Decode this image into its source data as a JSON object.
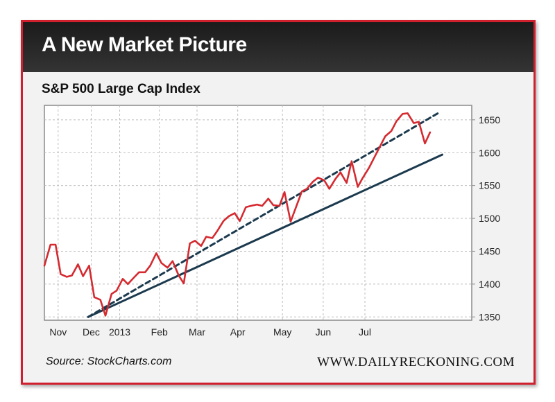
{
  "header": {
    "title": "A New Market Picture"
  },
  "footer": {
    "source": "Source: StockCharts.com",
    "site": "WWW.DAILYRECKONING.COM"
  },
  "colors": {
    "frame": "#d0202e",
    "header_bg": "#262626",
    "price_line": "#d42a30",
    "trend_line": "#1c3a4e"
  },
  "chart_data": {
    "type": "line",
    "title": "S&P 500 Large Cap Index",
    "xlabel": "",
    "ylabel": "",
    "x_tick_labels": [
      "Nov",
      "Dec",
      "2013",
      "Feb",
      "Mar",
      "Apr",
      "May",
      "Jun",
      "Jul"
    ],
    "y_ticks": [
      1350,
      1400,
      1450,
      1500,
      1550,
      1600,
      1650
    ],
    "ylim": [
      1345,
      1672
    ],
    "grid": true,
    "y_axis_side": "right",
    "x_domain_weeks": [
      0,
      42
    ],
    "x_tick_positions_weeks": [
      1.35,
      4.6,
      7.4,
      11.3,
      15.0,
      19.0,
      23.4,
      27.4,
      31.5
    ],
    "series": [
      {
        "style": "solid-red",
        "x": [
          0,
          0.6,
          1.1,
          1.6,
          2.2,
          2.7,
          3.3,
          3.8,
          4.4,
          4.9,
          5.5,
          6.0,
          6.6,
          7.1,
          7.7,
          8.2,
          8.8,
          9.3,
          9.9,
          10.4,
          11.0,
          11.5,
          12.1,
          12.6,
          13.2,
          13.7,
          14.3,
          14.8,
          15.4,
          15.9,
          16.5,
          17.0,
          17.6,
          18.1,
          18.7,
          19.2,
          19.8,
          20.3,
          20.9,
          21.4,
          22.0,
          22.5,
          23.1,
          23.6,
          24.2,
          24.7,
          25.3,
          25.8,
          26.4,
          26.9,
          27.5,
          28.0,
          28.6,
          29.1,
          29.7,
          30.2,
          30.8,
          31.3,
          31.9,
          32.4,
          33.0,
          33.5,
          34.1,
          34.6,
          35.2,
          35.7,
          36.3,
          36.8,
          37.4,
          37.9
        ],
        "values": [
          1428,
          1460,
          1460,
          1415,
          1411,
          1413,
          1430,
          1412,
          1428,
          1380,
          1376,
          1352,
          1385,
          1390,
          1408,
          1400,
          1410,
          1418,
          1418,
          1428,
          1447,
          1432,
          1425,
          1435,
          1413,
          1401,
          1462,
          1466,
          1458,
          1472,
          1470,
          1481,
          1496,
          1503,
          1508,
          1496,
          1517,
          1519,
          1521,
          1519,
          1530,
          1520,
          1519,
          1540,
          1495,
          1516,
          1541,
          1545,
          1556,
          1562,
          1558,
          1545,
          1560,
          1570,
          1554,
          1587,
          1548,
          1562,
          1577,
          1592,
          1610,
          1625,
          1633,
          1648,
          1659,
          1660,
          1645,
          1647,
          1614,
          1631
        ]
      },
      {
        "style": "dashed-navy",
        "x": [
          4.3,
          38.9
        ],
        "values": [
          1350,
          1662
        ]
      },
      {
        "style": "solid-navy",
        "x": [
          4.3,
          39.1
        ],
        "values": [
          1350,
          1597
        ]
      }
    ]
  }
}
